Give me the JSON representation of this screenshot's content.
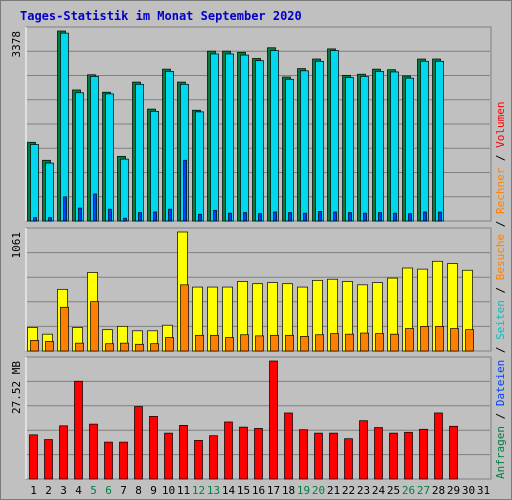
{
  "chart_data": {
    "type": "bar",
    "title": "Tages-Statistik im Monat September 2020",
    "categories": [
      "1",
      "2",
      "3",
      "4",
      "5",
      "6",
      "7",
      "8",
      "9",
      "10",
      "11",
      "12",
      "13",
      "14",
      "15",
      "16",
      "17",
      "18",
      "19",
      "20",
      "21",
      "22",
      "23",
      "24",
      "25",
      "26",
      "27",
      "28",
      "29",
      "30",
      "31"
    ],
    "weekend_days": [
      "5",
      "6",
      "12",
      "13",
      "19",
      "20",
      "26",
      "27"
    ],
    "grid": true,
    "panels": [
      {
        "name": "top",
        "ymax_label": "3378",
        "ymax": 3378,
        "series": [
          {
            "name": "Anfragen",
            "color": "#008040",
            "values": [
              1400,
              1080,
              3378,
              2330,
              2600,
              2290,
              1150,
              2470,
              1990,
              2700,
              2470,
              1970,
              3020,
              3020,
              3000,
              2890,
              3080,
              2560,
              2710,
              2880,
              3060,
              2590,
              2610,
              2700,
              2690,
              2580,
              2880,
              2880,
              0,
              0,
              0
            ]
          },
          {
            "name": "Dateien",
            "color": "#00d8f0",
            "values": [
              1360,
              1030,
              3340,
              2280,
              2570,
              2260,
              1100,
              2430,
              1950,
              2660,
              2430,
              1940,
              2970,
              2970,
              2950,
              2850,
              3030,
              2520,
              2670,
              2840,
              3030,
              2550,
              2570,
              2660,
              2650,
              2540,
              2840,
              2840,
              0,
              0,
              0
            ]
          },
          {
            "name": "Seiten",
            "color": "#0040ff",
            "values": [
              60,
              60,
              430,
              230,
              480,
              210,
              50,
              150,
              160,
              210,
              1080,
              120,
              190,
              140,
              150,
              130,
              160,
              150,
              140,
              170,
              160,
              150,
              140,
              150,
              140,
              130,
              160,
              160,
              0,
              0,
              0
            ]
          }
        ]
      },
      {
        "name": "middle",
        "ymax_label": "1061",
        "ymax": 1061,
        "series": [
          {
            "name": "Besuche",
            "color": "#ffff00",
            "values": [
              210,
              150,
              550,
              210,
              700,
              190,
              220,
              180,
              180,
              230,
              1061,
              570,
              570,
              570,
              620,
              600,
              610,
              600,
              570,
              630,
              640,
              620,
              590,
              610,
              650,
              740,
              730,
              800,
              780,
              720,
              0
            ]
          },
          {
            "name": "Rechner",
            "color": "#ff8000",
            "values": [
              95,
              85,
              390,
              70,
              440,
              65,
              70,
              60,
              65,
              120,
              590,
              140,
              140,
              120,
              145,
              135,
              140,
              140,
              130,
              145,
              155,
              150,
              160,
              155,
              150,
              200,
              220,
              220,
              200,
              190,
              0
            ]
          }
        ]
      },
      {
        "name": "bottom",
        "ymax_label": "27.52 MB",
        "ymax": 27.52,
        "series": [
          {
            "name": "Volumen",
            "color": "#ff0000",
            "values": [
              10.3,
              9.2,
              12.4,
              22.8,
              12.8,
              8.6,
              8.6,
              16.9,
              14.6,
              10.7,
              12.5,
              9.0,
              10.1,
              13.3,
              12.1,
              11.8,
              27.52,
              15.4,
              11.5,
              10.7,
              10.7,
              9.4,
              13.6,
              12.0,
              10.7,
              10.9,
              11.6,
              15.4,
              12.3,
              0,
              0
            ]
          }
        ]
      }
    ],
    "right_legend": [
      {
        "label": "Anfragen",
        "color": "#008040"
      },
      {
        "label": "Dateien",
        "color": "#0040ff"
      },
      {
        "label": "Seiten",
        "color": "#00c0c0"
      },
      {
        "label": "Besuche",
        "color": "#ff8000"
      },
      {
        "label": "Rechner",
        "color": "#ff8000"
      },
      {
        "label": "Volumen",
        "color": "#ff0000"
      }
    ],
    "legend_separator": " / "
  }
}
